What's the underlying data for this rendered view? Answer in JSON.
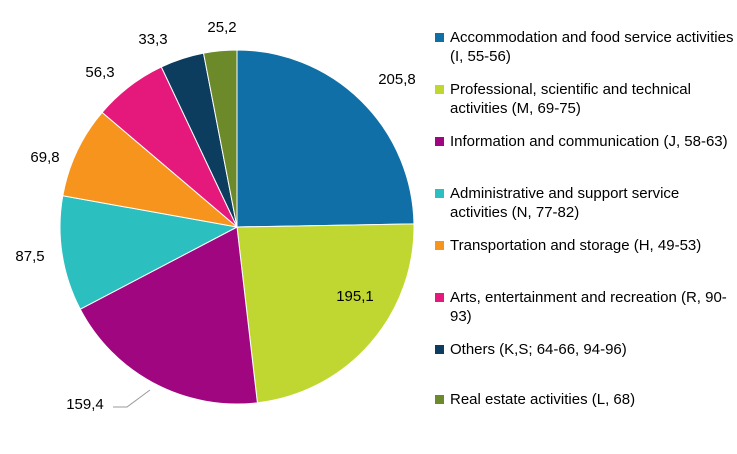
{
  "chart_data": {
    "type": "pie",
    "categories": [
      "Accommodation and food service activities (I, 55-56)",
      "Professional, scientific and technical activities (M, 69-75)",
      "Information and communication (J, 58-63)",
      "Administrative and support service activities (N, 77-82)",
      "Transportation and storage (H, 49-53)",
      "Arts, entertainment and recreation (R, 90-93)",
      "Others (K,S; 64-66, 94-96)",
      "Real estate activities (L, 68)"
    ],
    "values": [
      205.8,
      195.1,
      159.4,
      87.5,
      69.8,
      56.3,
      33.3,
      25.2
    ],
    "value_labels": [
      "205,8",
      "195,1",
      "159,4",
      "87,5",
      "69,8",
      "56,3",
      "33,3",
      "25,2"
    ],
    "colors": [
      "#0f6fa6",
      "#bfd730",
      "#a0067f",
      "#2bbfbf",
      "#f7941d",
      "#e5197b",
      "#0c3d5e",
      "#6d8a2b"
    ],
    "legend": "right"
  }
}
